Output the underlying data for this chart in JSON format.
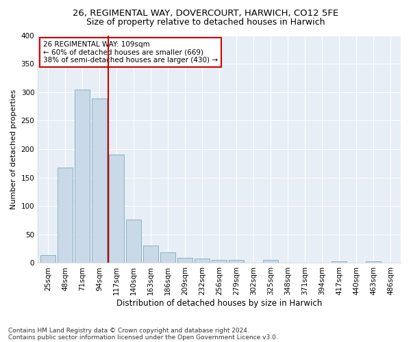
{
  "title1": "26, REGIMENTAL WAY, DOVERCOURT, HARWICH, CO12 5FE",
  "title2": "Size of property relative to detached houses in Harwich",
  "xlabel": "Distribution of detached houses by size in Harwich",
  "ylabel": "Number of detached properties",
  "footnote1": "Contains HM Land Registry data © Crown copyright and database right 2024.",
  "footnote2": "Contains public sector information licensed under the Open Government Licence v3.0.",
  "annotation_line1": "26 REGIMENTAL WAY: 109sqm",
  "annotation_line2": "← 60% of detached houses are smaller (669)",
  "annotation_line3": "38% of semi-detached houses are larger (430) →",
  "bar_color": "#c9d9e8",
  "bar_edge_color": "#7aaabf",
  "vline_color": "#cc0000",
  "bg_color": "#e8eef5",
  "categories": [
    "25sqm",
    "48sqm",
    "71sqm",
    "94sqm",
    "117sqm",
    "140sqm",
    "163sqm",
    "186sqm",
    "209sqm",
    "232sqm",
    "256sqm",
    "279sqm",
    "302sqm",
    "325sqm",
    "348sqm",
    "371sqm",
    "394sqm",
    "417sqm",
    "440sqm",
    "463sqm",
    "486sqm"
  ],
  "values": [
    14,
    167,
    305,
    289,
    190,
    76,
    31,
    18,
    9,
    8,
    5,
    5,
    0,
    5,
    0,
    0,
    0,
    3,
    0,
    3,
    0
  ],
  "ylim": [
    0,
    400
  ],
  "yticks": [
    0,
    50,
    100,
    150,
    200,
    250,
    300,
    350,
    400
  ],
  "vline_x": 3.5,
  "title1_fontsize": 9.5,
  "title2_fontsize": 9,
  "xlabel_fontsize": 8.5,
  "ylabel_fontsize": 8,
  "tick_fontsize": 7.5,
  "annot_fontsize": 7.5,
  "footnote_fontsize": 6.5
}
